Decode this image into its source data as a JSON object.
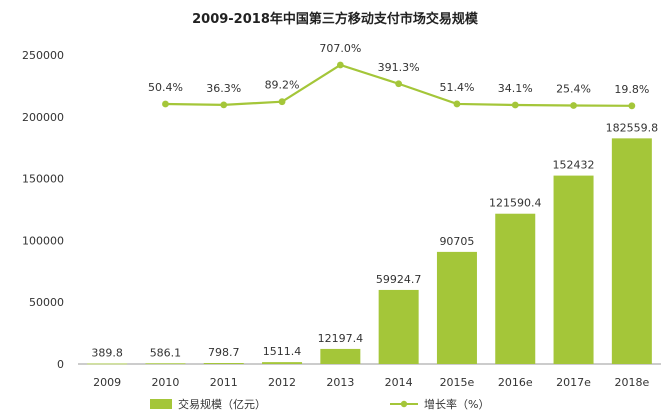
{
  "chart_data": {
    "type": "bar+line",
    "title": "2009-2018年中国第三方移动支付市场交易规模",
    "categories": [
      "2009",
      "2010",
      "2011",
      "2012",
      "2013",
      "2014",
      "2015e",
      "2016e",
      "2017e",
      "2018e"
    ],
    "series": [
      {
        "name": "交易规模（亿元）",
        "type": "bar",
        "color": "#a4c639",
        "values": [
          389.8,
          586.1,
          798.7,
          1511.4,
          12197.4,
          59924.7,
          90705,
          121590.4,
          152432,
          182559.8
        ],
        "labels": [
          "389.8",
          "586.1",
          "798.7",
          "1511.4",
          "12197.4",
          "59924.7",
          "90705",
          "121590.4",
          "152432",
          "182559.8"
        ]
      },
      {
        "name": "增长率（%）",
        "type": "line",
        "color": "#a4c639",
        "values": [
          null,
          50.4,
          36.3,
          89.2,
          707.0,
          391.3,
          51.4,
          34.1,
          25.4,
          19.8
        ],
        "labels": [
          "",
          "50.4%",
          "36.3%",
          "89.2%",
          "707.0%",
          "391.3%",
          "51.4%",
          "34.1%",
          "25.4%",
          "19.8%"
        ]
      }
    ],
    "y_ticks": [
      "0",
      "50000",
      "100000",
      "150000",
      "200000",
      "250000"
    ],
    "ylim": [
      0,
      250000
    ]
  }
}
